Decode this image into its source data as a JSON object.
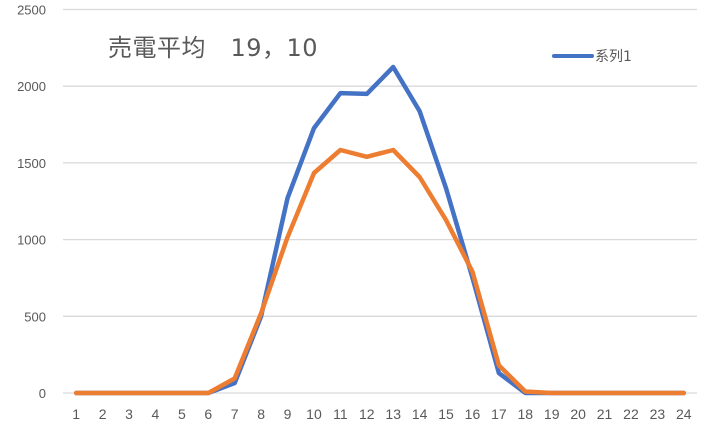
{
  "chart_data": {
    "type": "line",
    "title": "売電平均　19，10",
    "xlabel": "",
    "ylabel": "",
    "ylim": [
      0,
      2500
    ],
    "yticks": [
      0,
      500,
      1000,
      1500,
      2000,
      2500
    ],
    "grid": true,
    "legend_position": "top-right",
    "categories": [
      "1",
      "2",
      "3",
      "4",
      "5",
      "6",
      "7",
      "8",
      "9",
      "10",
      "11",
      "12",
      "13",
      "14",
      "15",
      "16",
      "17",
      "18",
      "19",
      "20",
      "21",
      "22",
      "23",
      "24"
    ],
    "series": [
      {
        "name": "系列1",
        "color": "#4472c4",
        "values": [
          0,
          0,
          0,
          0,
          0,
          0,
          65,
          500,
          1270,
          1727,
          1955,
          1950,
          2125,
          1838,
          1336,
          750,
          130,
          0,
          0,
          0,
          0,
          0,
          0,
          0
        ]
      },
      {
        "name": "",
        "color": "#ed7d31",
        "values": [
          0,
          0,
          0,
          0,
          0,
          0,
          95,
          520,
          1015,
          1434,
          1584,
          1540,
          1584,
          1408,
          1128,
          790,
          180,
          10,
          0,
          0,
          0,
          0,
          0,
          0
        ]
      }
    ]
  },
  "legend": {
    "items": [
      {
        "label": "系列1",
        "color": "#4472c4"
      }
    ]
  }
}
